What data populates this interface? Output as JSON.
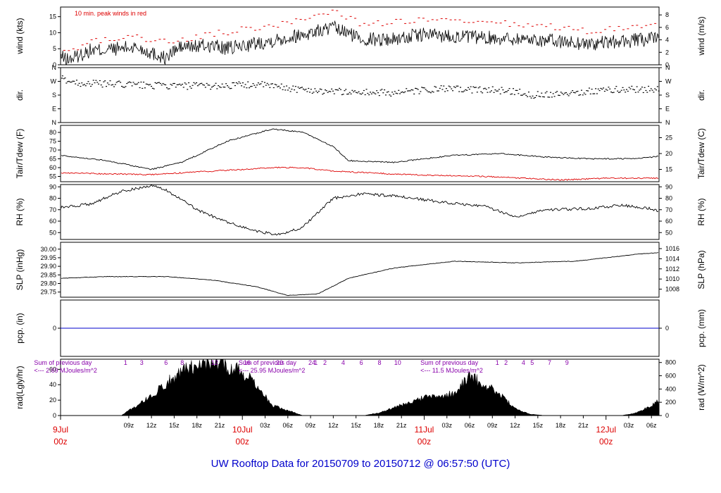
{
  "title": "UW Rooftop Data for 20150709  to  20150712 @ 06:57:50  (UTC)",
  "colors": {
    "title": "#0000cc",
    "peak": "#dd0000",
    "dewpoint": "#dd0000",
    "precip": "#0000cc",
    "day_label": "#dd0000",
    "radiation_note": "#8800aa",
    "trace": "#000000"
  },
  "chart_data": [
    {
      "type": "line",
      "id": "wind",
      "ylabel": "wind (kts)",
      "ylabel_right": "wind (m/s)",
      "ylim": [
        0,
        18
      ],
      "yticks": [
        0,
        5,
        10,
        15
      ],
      "right_ticks": [
        "0",
        "2",
        "4",
        "6",
        "8"
      ],
      "right_tick_values": [
        0,
        3.89,
        7.78,
        11.66,
        15.55
      ],
      "annotation": "10 min. peak winds in red",
      "series": [
        {
          "role": "wind",
          "x": [
            0,
            1,
            4,
            5,
            10,
            14,
            15,
            16,
            20,
            22,
            30,
            36,
            40,
            44,
            48,
            55,
            62,
            70,
            78,
            85,
            92
          ],
          "values": [
            2.5,
            1.5,
            4.5,
            4.5,
            5.5,
            2.0,
            4.5,
            5.5,
            6.0,
            5.0,
            8.5,
            11.5,
            8.0,
            8.0,
            9.5,
            8.5,
            8.0,
            6.5,
            8.0,
            8.5,
            6.0
          ]
        },
        {
          "role": "peak",
          "x": [
            1,
            4,
            10,
            15,
            20,
            30,
            36,
            40,
            48,
            55,
            62,
            70,
            78,
            85,
            92
          ],
          "values": [
            4.0,
            7.5,
            8.5,
            7.0,
            9.5,
            13.0,
            17.0,
            12.5,
            14.0,
            13.0,
            12.5,
            10.5,
            12.5,
            13.5,
            10.0
          ]
        }
      ]
    },
    {
      "type": "scatter",
      "id": "dir",
      "ylabel": "dir.",
      "ylabel_right": "dir.",
      "ylim": [
        0,
        360
      ],
      "yticks": [
        0,
        90,
        180,
        270,
        360
      ],
      "ytick_labels": [
        "N",
        "E",
        "S",
        "W",
        "N"
      ],
      "series": [
        {
          "x": [
            0,
            2,
            8,
            14,
            20,
            26,
            32,
            38,
            44,
            50,
            56,
            60,
            62,
            70,
            72,
            78,
            84,
            90,
            93
          ],
          "values": [
            290,
            260,
            250,
            240,
            240,
            250,
            215,
            200,
            195,
            220,
            215,
            205,
            180,
            205,
            215,
            220,
            225,
            215,
            190
          ]
        }
      ]
    },
    {
      "type": "line",
      "id": "temp",
      "ylabel": "Tair/Tdew (F)",
      "ylabel_right": "Tair/Tdew (C)",
      "ylim": [
        52,
        84
      ],
      "yticks": [
        55,
        60,
        65,
        70,
        75,
        80
      ],
      "right_ticks": [
        "15",
        "20",
        "25"
      ],
      "right_tick_values": [
        59,
        68,
        77
      ],
      "series": [
        {
          "role": "air",
          "x": [
            0,
            6,
            12,
            16,
            22,
            28,
            32,
            36,
            38,
            44,
            52,
            58,
            64,
            70,
            76,
            82,
            86,
            88,
            93
          ],
          "values": [
            67,
            64,
            59,
            63,
            75,
            82,
            80,
            72,
            64,
            63,
            67,
            68,
            66,
            65,
            65,
            68,
            69,
            68,
            65
          ]
        },
        {
          "role": "dew",
          "x": [
            0,
            12,
            20,
            28,
            32,
            36,
            46,
            56,
            66,
            72,
            80,
            86,
            93
          ],
          "values": [
            57,
            56,
            58,
            60,
            60,
            58,
            56,
            55,
            53,
            54,
            54,
            56,
            57
          ]
        }
      ]
    },
    {
      "type": "line",
      "id": "rh",
      "ylabel": "RH (%)",
      "ylabel_right": "RH (%)",
      "ylim": [
        44,
        92
      ],
      "yticks": [
        50,
        60,
        70,
        80,
        90
      ],
      "right_ticks": [
        "50",
        "60",
        "70",
        "80",
        "90"
      ],
      "right_tick_values": [
        50,
        60,
        70,
        80,
        90
      ],
      "series": [
        {
          "x": [
            0,
            4,
            8,
            12,
            14,
            18,
            22,
            26,
            29,
            32,
            36,
            40,
            44,
            50,
            56,
            60,
            64,
            70,
            74,
            78,
            80,
            82,
            84,
            86,
            88,
            90,
            93
          ],
          "values": [
            72,
            75,
            86,
            91,
            87,
            70,
            59,
            51,
            48,
            55,
            80,
            84,
            82,
            77,
            73,
            64,
            70,
            71,
            74,
            71,
            66,
            72,
            64,
            64,
            70,
            75,
            80
          ]
        }
      ]
    },
    {
      "type": "line",
      "id": "slp",
      "ylabel": "SLP (inHg)",
      "ylabel_right": "SLP (hPa)",
      "ylim": [
        29.72,
        30.04
      ],
      "yticks": [
        29.75,
        29.8,
        29.85,
        29.9,
        29.95,
        30.0
      ],
      "ytick_labels": [
        "29.75",
        "29.80",
        "29.85",
        "29.90",
        "29.95",
        "30.00"
      ],
      "right_ticks": [
        "1008",
        "1010",
        "1012",
        "1014",
        "1016"
      ],
      "right_tick_values": [
        29.767,
        29.826,
        29.885,
        29.944,
        30.003
      ],
      "series": [
        {
          "x": [
            0,
            6,
            14,
            20,
            26,
            30,
            34,
            38,
            44,
            52,
            60,
            68,
            76,
            82,
            90,
            93
          ],
          "values": [
            29.83,
            29.84,
            29.84,
            29.82,
            29.78,
            29.73,
            29.74,
            29.83,
            29.89,
            29.93,
            29.92,
            29.93,
            29.97,
            29.99,
            30.01,
            30.04
          ]
        }
      ]
    },
    {
      "type": "line",
      "id": "pcp",
      "ylabel": "pcp. (in)",
      "ylabel_right": "pcp. (mm)",
      "yticks": [
        0
      ],
      "right_ticks": [
        "0"
      ],
      "series": [
        {
          "x": [
            0,
            93
          ],
          "values": [
            0,
            0
          ]
        }
      ]
    },
    {
      "type": "area",
      "id": "rad",
      "ylabel": "rad(Lgly/hr)",
      "ylabel_right": "rad (W/m^2)",
      "ylim": [
        0,
        850
      ],
      "yticks": [
        0,
        20,
        40,
        60
      ],
      "ytick_values": [
        0,
        232,
        465,
        697
      ],
      "right_ticks": [
        "0",
        "200",
        "400",
        "600",
        "800"
      ],
      "right_tick_values": [
        0,
        200,
        400,
        600,
        800
      ],
      "series": [
        {
          "x": [
            0,
            5,
            8,
            12,
            16,
            19,
            21,
            24,
            26,
            28,
            30,
            32,
            34,
            36,
            38,
            40,
            42,
            44,
            48,
            52,
            54,
            56,
            58,
            60,
            62,
            64,
            66,
            68,
            70,
            72,
            74,
            76,
            78,
            80,
            82,
            84,
            86,
            88,
            90,
            93
          ],
          "values": [
            0,
            0,
            0,
            300,
            680,
            790,
            800,
            660,
            440,
            150,
            80,
            0,
            0,
            0,
            0,
            0,
            40,
            120,
            270,
            330,
            590,
            470,
            330,
            100,
            20,
            0,
            0,
            0,
            0,
            0,
            0,
            40,
            150,
            320,
            280,
            680,
            250,
            40,
            0,
            0
          ]
        }
      ],
      "notes": [
        {
          "text": "Sum of previous day",
          "value": "<--- 2.69 MJoules/m^2"
        },
        {
          "text": "Sum of previous day",
          "value": "<--- 25.95 MJoules/m^2"
        },
        {
          "text": "Sum of previous day",
          "value": "<--- 11.5 MJoules/m^2"
        }
      ],
      "hour_markers": [
        {
          "labels": [
            "1",
            "3",
            "6",
            "8",
            "12",
            "16",
            "20",
            "24"
          ],
          "hours": [
            1,
            3,
            6,
            8,
            12,
            16,
            20,
            24
          ]
        },
        {
          "labels": [
            "1",
            "2",
            "4",
            "6",
            "8",
            "10"
          ],
          "hours": [
            1,
            2,
            4,
            6,
            8,
            10
          ]
        },
        {
          "labels": [
            "1",
            "2",
            "4",
            "5",
            "7",
            "9"
          ],
          "hours": [
            1,
            2,
            4,
            5,
            7,
            9
          ]
        }
      ]
    }
  ],
  "time_axis": {
    "tick_labels": [
      "09z",
      "12z",
      "15z",
      "18z",
      "21z",
      "03z",
      "06z",
      "09z",
      "12z",
      "15z",
      "18z",
      "21z",
      "03z",
      "06z",
      "09z",
      "12z",
      "15z",
      "18z",
      "21z",
      "03z",
      "06z"
    ],
    "tick_hours": [
      9,
      12,
      15,
      18,
      21,
      27,
      30,
      33,
      36,
      39,
      42,
      45,
      51,
      54,
      57,
      60,
      63,
      66,
      69,
      75,
      78
    ],
    "day_labels": [
      {
        "date": "9Jul",
        "hour": "00z",
        "at": 0
      },
      {
        "date": "10Jul",
        "hour": "00z",
        "at": 24
      },
      {
        "date": "11Jul",
        "hour": "00z",
        "at": 48
      },
      {
        "date": "12Jul",
        "hour": "00z",
        "at": 72
      }
    ],
    "range": [
      0,
      79
    ]
  }
}
